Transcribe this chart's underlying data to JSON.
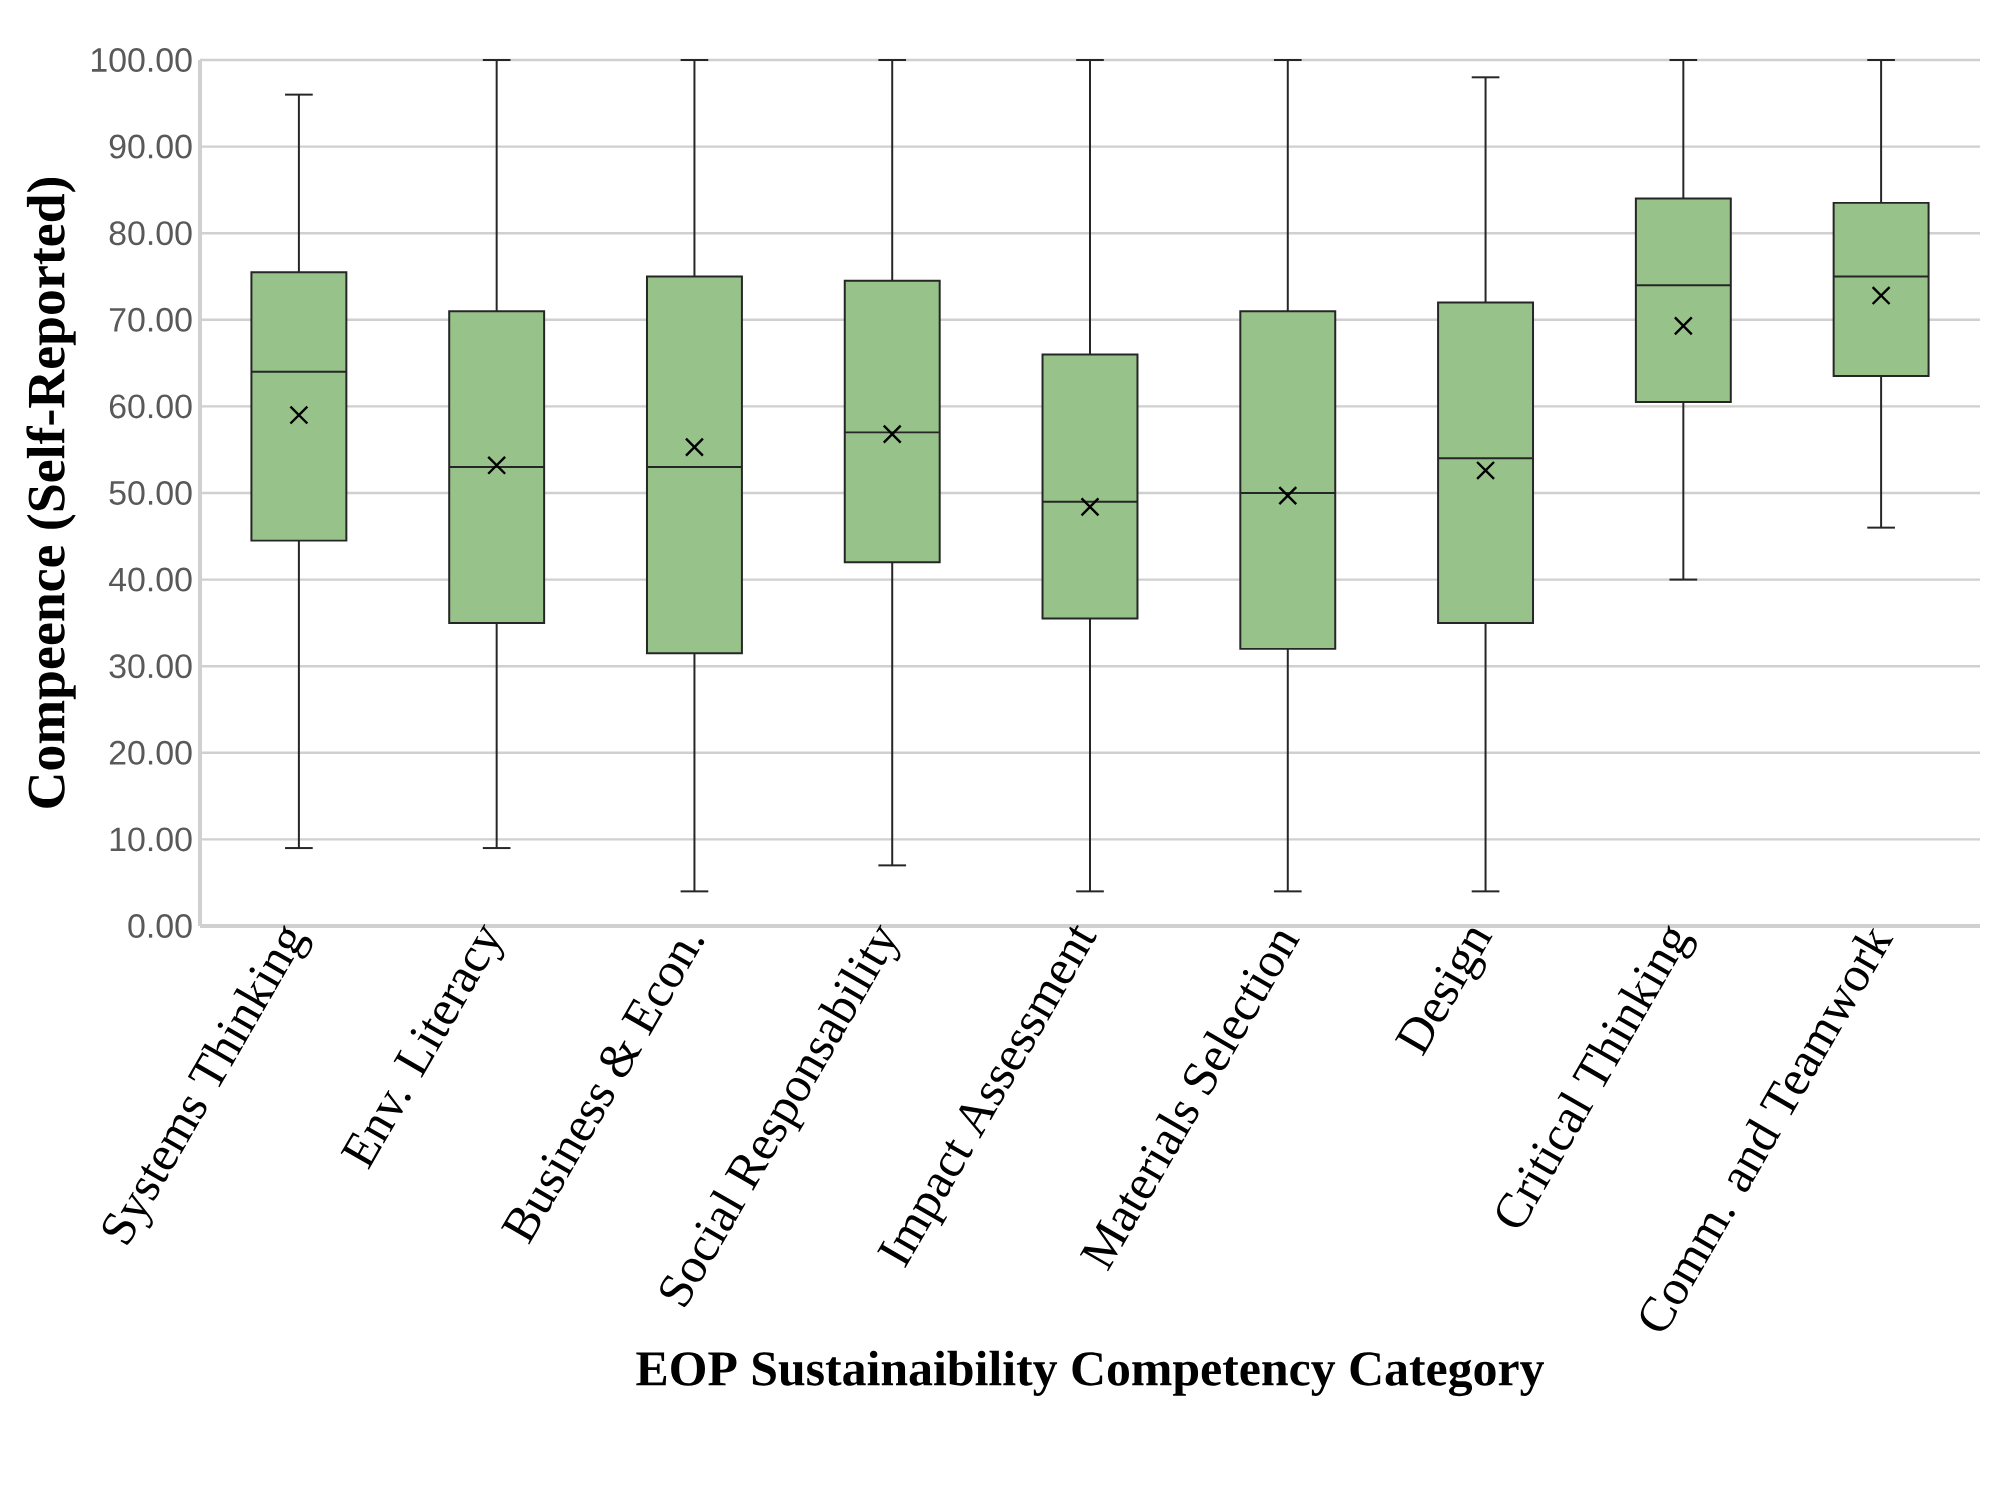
{
  "chart_data": {
    "type": "box",
    "xlabel": "EOP Sustainaibility Competency Category",
    "ylabel": "Compeence (Self-Reported)",
    "categories": [
      "Systems Thinking",
      "Env. Literacy",
      "Business & Econ.",
      "Social Responsability",
      "Impact Assessment",
      "Materials Selection",
      "Design",
      "Critical Thinking",
      "Comm. and Teamwork"
    ],
    "color": "#97c28a",
    "boxes": [
      {
        "low": 9,
        "q1": 44.5,
        "median": 64,
        "q3": 75.5,
        "high": 96,
        "mean": 59
      },
      {
        "low": 9,
        "q1": 35,
        "median": 53,
        "q3": 71,
        "high": 100,
        "mean": 53.2
      },
      {
        "low": 4,
        "q1": 31.5,
        "median": 53,
        "q3": 75,
        "high": 100,
        "mean": 55.3
      },
      {
        "low": 7,
        "q1": 42,
        "median": 57,
        "q3": 74.5,
        "high": 100,
        "mean": 56.8
      },
      {
        "low": 4,
        "q1": 35.5,
        "median": 49,
        "q3": 66,
        "high": 100,
        "mean": 48.4
      },
      {
        "low": 4,
        "q1": 32,
        "median": 50,
        "q3": 71,
        "high": 100,
        "mean": 49.7
      },
      {
        "low": 4,
        "q1": 35,
        "median": 54,
        "q3": 72,
        "high": 98,
        "mean": 52.6
      },
      {
        "low": 40,
        "q1": 60.5,
        "median": 74,
        "q3": 84,
        "high": 100,
        "mean": 69.3
      },
      {
        "low": 46,
        "q1": 63.5,
        "median": 75,
        "q3": 83.5,
        "high": 100,
        "mean": 72.8
      }
    ],
    "ylim": [
      0,
      100
    ],
    "yticks": [
      {
        "value": 0,
        "label": "0.00"
      },
      {
        "value": 10,
        "label": "10.00"
      },
      {
        "value": 20,
        "label": "20.00"
      },
      {
        "value": 30,
        "label": "30.00"
      },
      {
        "value": 40,
        "label": "40.00"
      },
      {
        "value": 50,
        "label": "50.00"
      },
      {
        "value": 60,
        "label": "60.00"
      },
      {
        "value": 70,
        "label": "70.00"
      },
      {
        "value": 80,
        "label": "80.00"
      },
      {
        "value": 90,
        "label": "90.00"
      },
      {
        "value": 100,
        "label": "100.00"
      }
    ],
    "grid": "y",
    "marker": "cross"
  }
}
